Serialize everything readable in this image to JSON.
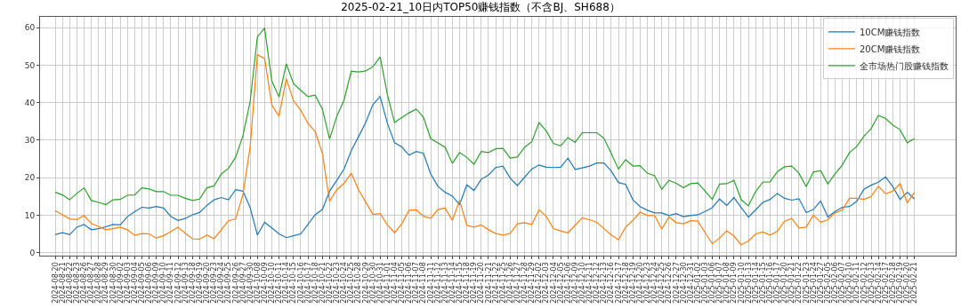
{
  "chart_data": {
    "type": "line",
    "title": "2025-02-21_10日内TOP50赚钱指数（不含BJ、SH688）",
    "categories": [
      "2024-08-20",
      "2024-08-21",
      "2024-08-22",
      "2024-08-23",
      "2024-08-26",
      "2024-08-27",
      "2024-08-28",
      "2024-08-29",
      "2024-08-30",
      "2024-09-02",
      "2024-09-03",
      "2024-09-04",
      "2024-09-05",
      "2024-09-06",
      "2024-09-09",
      "2024-09-10",
      "2024-09-11",
      "2024-09-12",
      "2024-09-13",
      "2024-09-18",
      "2024-09-19",
      "2024-09-20",
      "2024-09-23",
      "2024-09-24",
      "2024-09-25",
      "2024-09-26",
      "2024-09-27",
      "2024-09-30",
      "2024-10-08",
      "2024-10-09",
      "2024-10-10",
      "2024-10-11",
      "2024-10-14",
      "2024-10-15",
      "2024-10-16",
      "2024-10-17",
      "2024-10-18",
      "2024-10-21",
      "2024-10-22",
      "2024-10-23",
      "2024-10-24",
      "2024-10-25",
      "2024-10-28",
      "2024-10-29",
      "2024-10-30",
      "2024-10-31",
      "2024-11-01",
      "2024-11-04",
      "2024-11-05",
      "2024-11-06",
      "2024-11-07",
      "2024-11-08",
      "2024-11-11",
      "2024-11-12",
      "2024-11-13",
      "2024-11-14",
      "2024-11-15",
      "2024-11-18",
      "2024-11-19",
      "2024-11-20",
      "2024-11-21",
      "2024-11-22",
      "2024-11-25",
      "2024-11-26",
      "2024-11-27",
      "2024-11-28",
      "2024-11-29",
      "2024-12-02",
      "2024-12-03",
      "2024-12-04",
      "2024-12-05",
      "2024-12-06",
      "2024-12-09",
      "2024-12-10",
      "2024-12-11",
      "2024-12-12",
      "2024-12-13",
      "2024-12-16",
      "2024-12-17",
      "2024-12-18",
      "2024-12-19",
      "2024-12-20",
      "2024-12-23",
      "2024-12-24",
      "2024-12-25",
      "2024-12-26",
      "2024-12-27",
      "2024-12-30",
      "2024-12-31",
      "2025-01-02",
      "2025-01-03",
      "2025-01-06",
      "2025-01-07",
      "2025-01-08",
      "2025-01-09",
      "2025-01-10",
      "2025-01-13",
      "2025-01-14",
      "2025-01-15",
      "2025-01-16",
      "2025-01-17",
      "2025-01-20",
      "2025-01-21",
      "2025-01-22",
      "2025-01-23",
      "2025-01-24",
      "2025-01-27",
      "2025-02-05",
      "2025-02-06",
      "2025-02-07",
      "2025-02-10",
      "2025-02-11",
      "2025-02-12",
      "2025-02-13",
      "2025-02-14",
      "2025-02-17",
      "2025-02-18",
      "2025-02-19",
      "2025-02-20",
      "2025-02-21"
    ],
    "series": [
      {
        "name": "10CM赚钱指数",
        "color": "#1f77b4",
        "values": [
          4.8,
          5.3,
          4.8,
          6.8,
          7.5,
          6.1,
          6.4,
          6.9,
          7.5,
          7.4,
          9.6,
          10.9,
          12.1,
          11.9,
          12.3,
          11.9,
          9.7,
          8.6,
          9.1,
          10.1,
          10.7,
          12.6,
          14.1,
          14.7,
          14.1,
          16.8,
          16.4,
          12.0,
          4.7,
          8.1,
          6.6,
          5.0,
          4.0,
          4.5,
          5.0,
          7.5,
          10.1,
          11.5,
          16.4,
          19.3,
          22.3,
          27.2,
          30.9,
          34.7,
          39.5,
          41.7,
          34.5,
          29.3,
          28.2,
          26.0,
          27.0,
          26.5,
          21.0,
          17.7,
          16.1,
          15.1,
          12.8,
          18.1,
          16.6,
          19.6,
          20.7,
          22.7,
          23.1,
          19.9,
          17.9,
          20.1,
          22.3,
          23.4,
          22.8,
          22.7,
          22.8,
          25.2,
          22.2,
          22.6,
          23.1,
          23.9,
          23.9,
          21.8,
          18.7,
          18.2,
          14.1,
          12.3,
          11.3,
          10.6,
          10.6,
          9.9,
          10.4,
          9.6,
          9.9,
          10.1,
          11.0,
          12.0,
          14.3,
          12.6,
          14.7,
          12.0,
          9.5,
          11.4,
          13.4,
          14.2,
          15.8,
          14.5,
          14.0,
          14.4,
          10.7,
          11.5,
          13.8,
          9.5,
          11.0,
          12.1,
          12.3,
          13.7,
          16.9,
          18.0,
          18.8,
          20.2,
          17.6,
          14.2,
          16.1,
          14.3
        ]
      },
      {
        "name": "20CM赚钱指数",
        "color": "#ff7f0e",
        "values": [
          11.2,
          10.1,
          9.0,
          8.8,
          9.9,
          7.7,
          7.0,
          6.1,
          6.4,
          6.8,
          6.1,
          4.6,
          5.1,
          5.0,
          3.9,
          4.5,
          5.6,
          6.8,
          5.2,
          3.7,
          3.6,
          4.7,
          3.7,
          6.1,
          8.5,
          9.0,
          15.5,
          28.3,
          52.8,
          51.8,
          39.4,
          36.4,
          46.4,
          40.5,
          38.0,
          34.5,
          32.3,
          26.5,
          13.7,
          16.8,
          18.5,
          21.2,
          16.8,
          13.5,
          10.2,
          10.4,
          7.4,
          5.3,
          7.7,
          11.3,
          11.4,
          9.7,
          9.2,
          11.5,
          11.9,
          8.6,
          13.9,
          7.3,
          6.8,
          7.4,
          6.1,
          5.1,
          4.7,
          5.1,
          7.7,
          8.0,
          7.5,
          11.4,
          9.7,
          6.4,
          5.8,
          5.3,
          7.3,
          9.3,
          8.8,
          8.1,
          6.4,
          4.7,
          3.4,
          6.8,
          8.6,
          10.8,
          9.9,
          9.9,
          6.3,
          9.5,
          8.0,
          7.7,
          8.5,
          8.4,
          5.3,
          2.4,
          3.9,
          5.8,
          4.4,
          2.1,
          3.1,
          5.0,
          5.5,
          4.7,
          5.7,
          8.4,
          9.1,
          6.6,
          6.8,
          10.0,
          8.1,
          8.8,
          10.6,
          11.4,
          14.5,
          14.5,
          14.2,
          15.0,
          17.7,
          15.7,
          16.4,
          18.4,
          13.3,
          16.1
        ]
      },
      {
        "name": "全市场热门股赚钱指数",
        "color": "#2ca02c",
        "values": [
          16.1,
          15.4,
          14.1,
          15.8,
          17.3,
          13.9,
          13.4,
          12.8,
          14.1,
          14.2,
          15.3,
          15.4,
          17.3,
          17.0,
          16.3,
          16.3,
          15.3,
          15.3,
          14.5,
          13.9,
          14.3,
          17.3,
          17.8,
          21.0,
          22.5,
          25.5,
          31.2,
          40.4,
          57.6,
          59.9,
          45.8,
          41.5,
          50.4,
          45.1,
          43.3,
          41.6,
          42.0,
          38.3,
          30.3,
          36.4,
          40.7,
          48.4,
          48.2,
          48.5,
          49.6,
          52.2,
          42.2,
          34.7,
          36.0,
          37.3,
          38.3,
          36.1,
          30.4,
          29.3,
          28.1,
          23.8,
          26.7,
          25.4,
          23.6,
          27.0,
          26.7,
          27.7,
          27.8,
          25.2,
          25.5,
          28.1,
          29.6,
          34.7,
          32.5,
          29.1,
          28.5,
          30.7,
          29.4,
          32.0,
          32.0,
          32.0,
          30.5,
          26.5,
          22.3,
          24.8,
          23.1,
          23.2,
          21.2,
          20.5,
          16.9,
          19.3,
          18.5,
          17.3,
          18.4,
          18.6,
          16.4,
          14.2,
          18.3,
          18.4,
          19.3,
          14.1,
          12.5,
          16.3,
          18.8,
          18.9,
          21.6,
          22.9,
          23.1,
          21.2,
          17.6,
          21.5,
          21.9,
          18.3,
          21.0,
          23.4,
          26.7,
          28.3,
          31.1,
          33.1,
          36.6,
          35.8,
          34.0,
          32.8,
          29.3,
          30.4
        ]
      }
    ],
    "ylim": [
      -0.8,
      62.9
    ],
    "yticks": [
      0,
      10,
      20,
      30,
      40,
      50,
      60
    ],
    "grid": true,
    "legend": "top right",
    "marker": "none",
    "line_style": "solid"
  }
}
